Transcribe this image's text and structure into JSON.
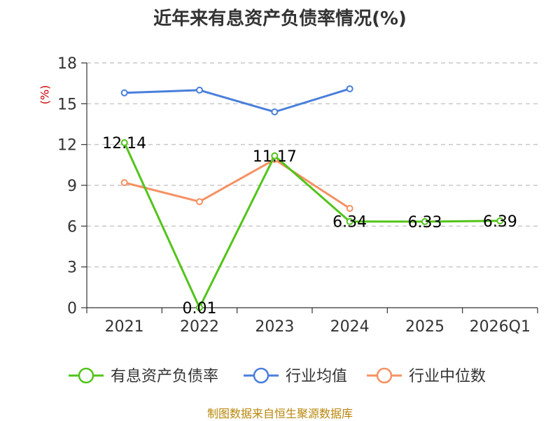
{
  "chart_data": {
    "type": "line",
    "title": "近年来有息资产负债率情况(%)",
    "ylabel": "(%)",
    "xlabel": "",
    "ylim": [
      0,
      18
    ],
    "yticks": [
      0,
      3,
      6,
      9,
      12,
      15,
      18
    ],
    "categories": [
      "2021",
      "2022",
      "2023",
      "2024",
      "2025",
      "2026Q1"
    ],
    "grid": true,
    "legend_position": "bottom",
    "series": [
      {
        "name": "有息资产负债率",
        "color": "#52c41a",
        "values": [
          12.14,
          0.01,
          11.17,
          6.34,
          6.33,
          6.39
        ],
        "labels": [
          "12.14",
          "0.01",
          "11.17",
          "6.34",
          "6.33",
          "6.39"
        ]
      },
      {
        "name": "行业均值",
        "color": "#4a7fdb",
        "values": [
          15.8,
          16.0,
          14.4,
          16.1,
          null,
          null
        ]
      },
      {
        "name": "行业中位数",
        "color": "#f59162",
        "values": [
          9.2,
          7.8,
          10.9,
          7.3,
          null,
          null
        ]
      }
    ],
    "source": "制图数据来自恒生聚源数据库"
  }
}
